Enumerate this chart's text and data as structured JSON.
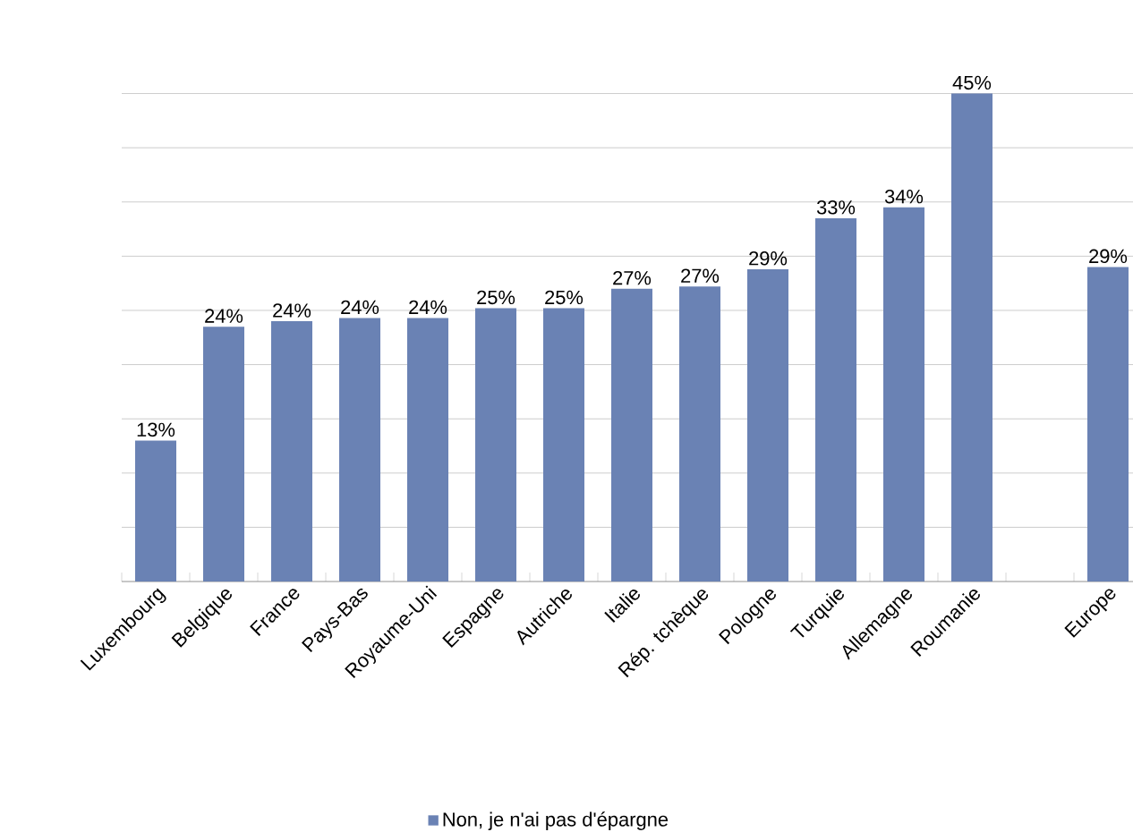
{
  "chart_data": {
    "type": "bar",
    "categories": [
      "Luxembourg",
      "Belgique",
      "France",
      "Pays-Bas",
      "Royaume-Uni",
      "Espagne",
      "Autriche",
      "Italie",
      "Rép. tchèque",
      "Pologne",
      "Turquie",
      "Allemagne",
      "Roumanie",
      null,
      "Europe"
    ],
    "series": [
      {
        "name": "Non, je n'ai pas d'épargne",
        "color": "#6a82b4",
        "values": [
          13,
          23.5,
          24,
          24.3,
          24.3,
          25.2,
          25.2,
          27,
          27.2,
          28.8,
          33.5,
          34.5,
          45,
          null,
          29
        ],
        "value_labels": [
          "13%",
          "24%",
          "24%",
          "24%",
          "24%",
          "25%",
          "25%",
          "27%",
          "27%",
          "29%",
          "33%",
          "34%",
          "45%",
          null,
          "29%"
        ]
      }
    ],
    "tick_labels": "x",
    "grid": "y",
    "legend": "bottom"
  }
}
